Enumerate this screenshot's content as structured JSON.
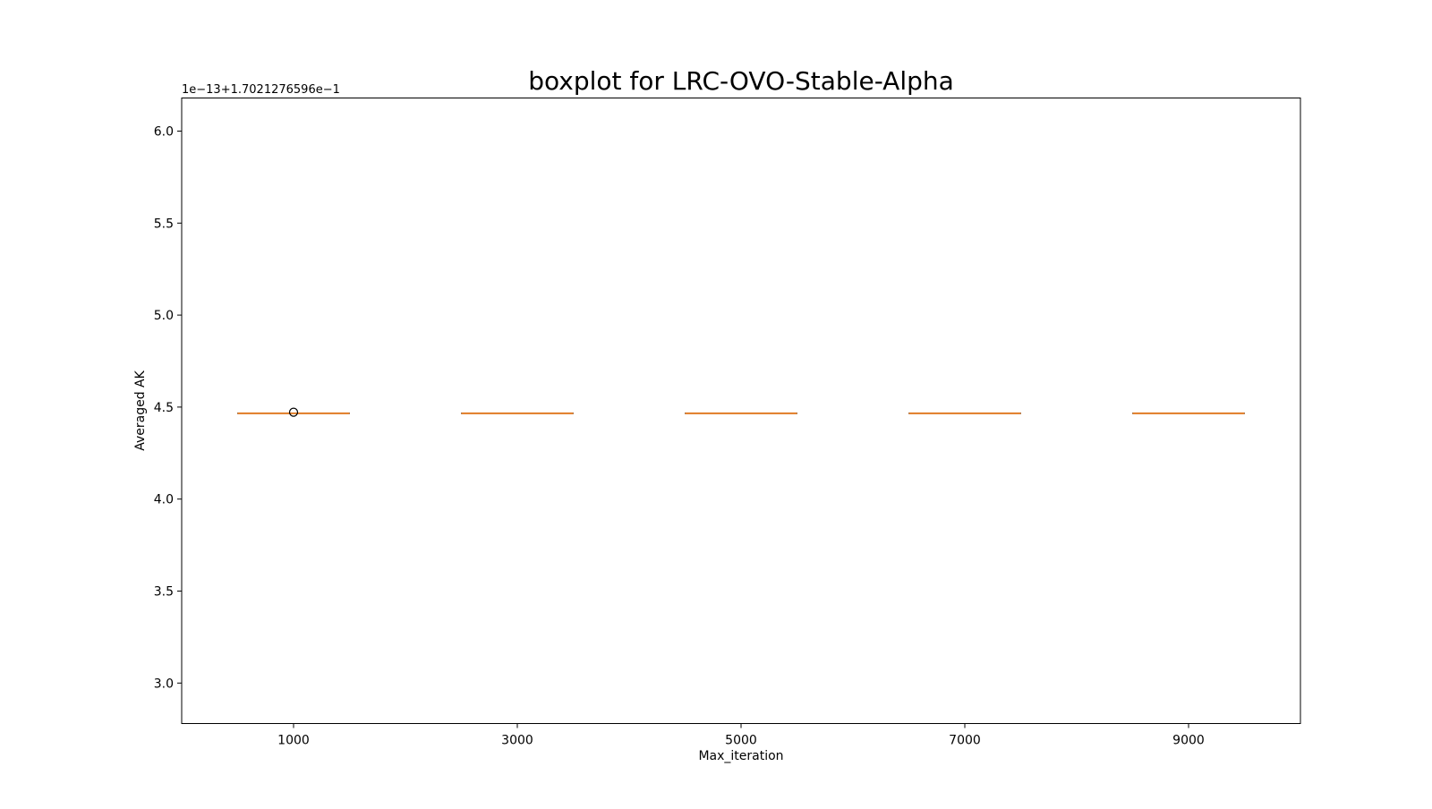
{
  "chart_data": {
    "type": "box",
    "title": "boxplot for LRC-OVO-Stable-Alpha",
    "xlabel": "Max_iteration",
    "ylabel": "Averaged AK",
    "offset_text": "1e−13+1.7021276596e−1",
    "categories": [
      "1000",
      "3000",
      "5000",
      "7000",
      "9000"
    ],
    "ylim": [
      2.78,
      6.18
    ],
    "yticks": [
      3.0,
      3.5,
      4.0,
      4.5,
      5.0,
      5.5,
      6.0
    ],
    "ytick_labels": [
      "3.0",
      "3.5",
      "4.0",
      "4.5",
      "5.0",
      "5.5",
      "6.0"
    ],
    "boxes": [
      {
        "category": "1000",
        "whislo": 4.466,
        "q1": 4.466,
        "median": 4.466,
        "q3": 4.466,
        "whishi": 4.466,
        "fliers": [
          4.472
        ]
      },
      {
        "category": "3000",
        "whislo": 4.466,
        "q1": 4.466,
        "median": 4.466,
        "q3": 4.466,
        "whishi": 4.466,
        "fliers": []
      },
      {
        "category": "5000",
        "whislo": 4.466,
        "q1": 4.466,
        "median": 4.466,
        "q3": 4.466,
        "whishi": 4.466,
        "fliers": []
      },
      {
        "category": "7000",
        "whislo": 4.466,
        "q1": 4.466,
        "median": 4.466,
        "q3": 4.466,
        "whishi": 4.466,
        "fliers": []
      },
      {
        "category": "9000",
        "whislo": 4.466,
        "q1": 4.466,
        "median": 4.466,
        "q3": 4.466,
        "whishi": 4.466,
        "fliers": []
      }
    ],
    "grid": false,
    "colors": {
      "box": "#000000",
      "median": "#e07b24",
      "flier": "#000000",
      "axes": "#000000"
    }
  }
}
